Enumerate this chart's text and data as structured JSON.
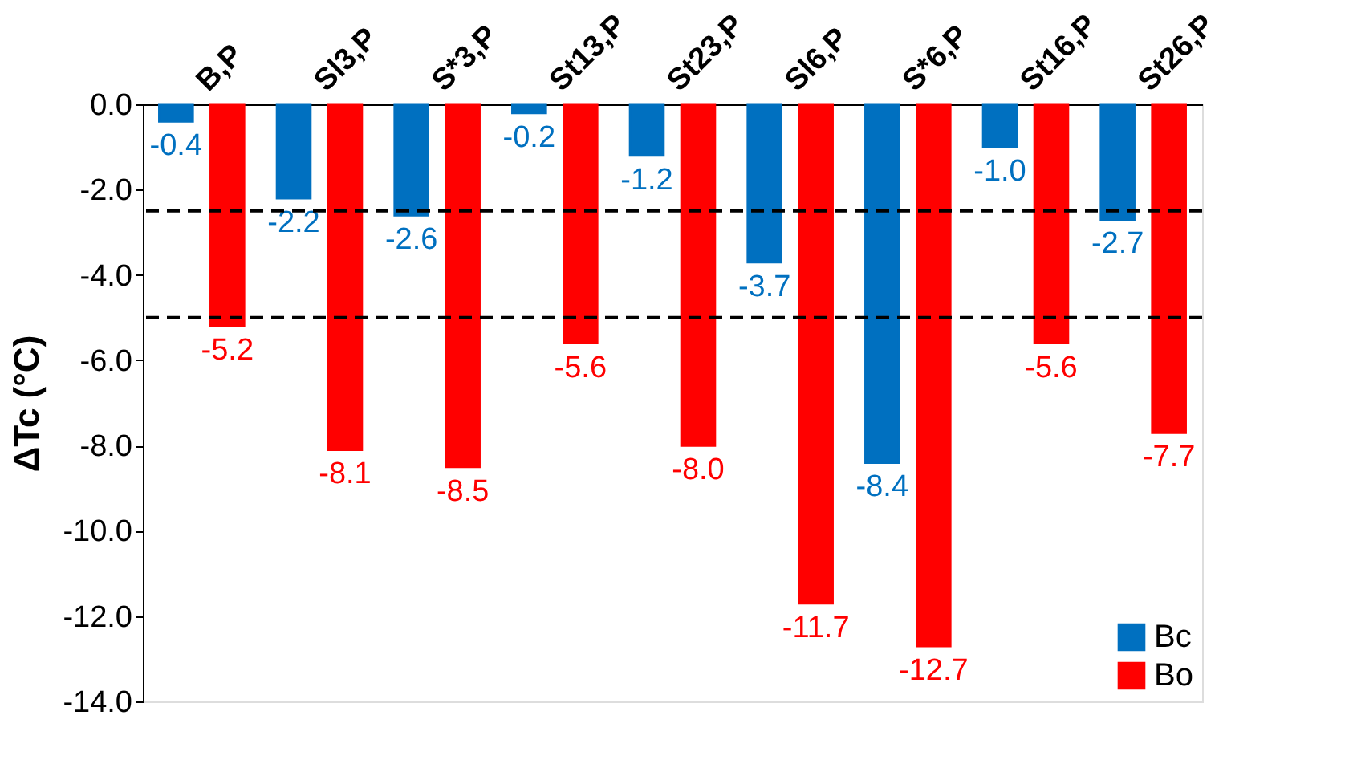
{
  "chart_data": {
    "type": "bar",
    "ylabel": "ΔTc (°C)",
    "categories": [
      "B,P",
      "Sl3,P",
      "S*3,P",
      "St13,P",
      "St23,P",
      "Sl6,P",
      "S*6,P",
      "St16,P",
      "St26,P"
    ],
    "series": [
      {
        "name": "Bc",
        "color": "#0070c0",
        "values": [
          -0.4,
          -2.2,
          -2.6,
          -0.2,
          -1.2,
          -3.7,
          -8.4,
          -1.0,
          -2.7
        ],
        "value_labels": [
          "-0.4",
          "-2.2",
          "-2.6",
          "-0.2",
          "-1.2",
          "-3.7",
          "-8.4",
          "-1.0",
          "-2.7"
        ]
      },
      {
        "name": "Bo",
        "color": "#ff0000",
        "values": [
          -5.2,
          -8.1,
          -8.5,
          -5.6,
          -8.0,
          -11.7,
          -12.7,
          -5.6,
          -7.7
        ],
        "value_labels": [
          "-5.2",
          "-8.1",
          "-8.5",
          "-5.6",
          "-8.0",
          "-11.7",
          "-12.7",
          "-5.6",
          "-7.7"
        ]
      }
    ],
    "ylim": [
      -14,
      0
    ],
    "yticks": [
      {
        "value": 0,
        "label": "0.0"
      },
      {
        "value": -2,
        "label": "-2.0"
      },
      {
        "value": -4,
        "label": "-4.0"
      },
      {
        "value": -6,
        "label": "-6.0"
      },
      {
        "value": -8,
        "label": "-8.0"
      },
      {
        "value": -10,
        "label": "-10.0"
      },
      {
        "value": -12,
        "label": "-12.0"
      },
      {
        "value": -14,
        "label": "-14.0"
      }
    ],
    "ref_lines": [
      {
        "axis": "y",
        "value": -2.5,
        "color": "#000000",
        "line_style": "dashed"
      },
      {
        "axis": "y",
        "value": -5,
        "color": "#000000",
        "line_style": "dashed"
      }
    ],
    "grid": false,
    "legend": "bottom right"
  }
}
